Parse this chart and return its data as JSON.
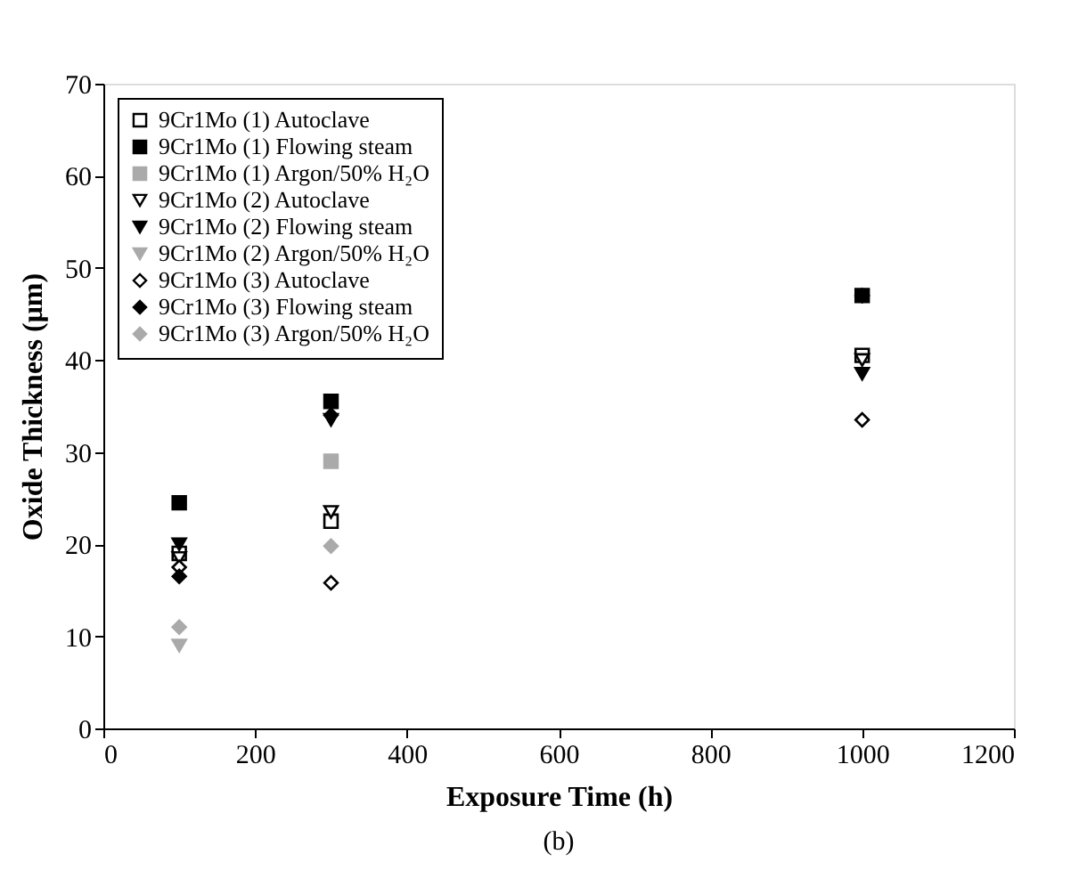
{
  "chart_data": {
    "type": "scatter",
    "xlabel": "Exposure Time (h)",
    "ylabel": "Oxide Thickness (μm)",
    "annotations": [
      "(b)"
    ],
    "x": [
      100,
      300,
      1000
    ],
    "xlim": [
      0,
      1200
    ],
    "xticks": [
      0,
      200,
      400,
      600,
      800,
      1000,
      1200
    ],
    "ylim": [
      0,
      70
    ],
    "yticks": [
      0,
      10,
      20,
      30,
      40,
      50,
      60,
      70
    ],
    "grid": false,
    "legend": "top left",
    "series": [
      {
        "name": "9Cr1Mo (1) Autoclave",
        "color": "#ffffff",
        "marker": "square",
        "values": [
          19,
          22.5,
          40.5
        ]
      },
      {
        "name": "9Cr1Mo (1) Flowing steam",
        "color": "#000000",
        "marker": "square",
        "values": [
          24.5,
          35.5,
          47
        ]
      },
      {
        "name": "9Cr1Mo (1) Argon/50% H₂O",
        "color": "#aaaaaa",
        "marker": "square",
        "values": [
          null,
          29,
          null
        ]
      },
      {
        "name": "9Cr1Mo (2) Autoclave",
        "color": "#ffffff",
        "marker": "triangle",
        "values": [
          18.5,
          23.5,
          40
        ]
      },
      {
        "name": "9Cr1Mo (2) Flowing steam",
        "color": "#000000",
        "marker": "triangle",
        "values": [
          20,
          33.5,
          38.5
        ]
      },
      {
        "name": "9Cr1Mo (2) Argon/50% H₂O",
        "color": "#aaaaaa",
        "marker": "triangle",
        "values": [
          9,
          null,
          null
        ]
      },
      {
        "name": "9Cr1Mo (3) Autoclave",
        "color": "#ffffff",
        "marker": "diamond",
        "values": [
          17.5,
          15.8,
          33.5
        ]
      },
      {
        "name": "9Cr1Mo (3) Flowing steam",
        "color": "#000000",
        "marker": "diamond",
        "values": [
          16.5,
          34,
          47
        ]
      },
      {
        "name": "9Cr1Mo (3) Argon/50% H₂O",
        "color": "#aaaaaa",
        "marker": "diamond",
        "values": [
          11,
          19.8,
          null
        ]
      }
    ]
  }
}
